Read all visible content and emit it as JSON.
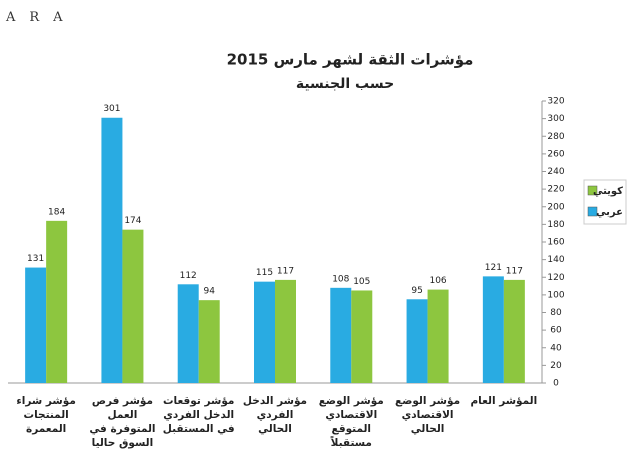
{
  "logo": "ARA",
  "chart_data": {
    "type": "bar",
    "title": "مؤشرات الثقة لشهر مارس 2015",
    "subtitle": "حسب الجنسية",
    "categories": [
      "مؤشر شراء المنتجات المعمرة",
      "مؤشر فرص العمل المتوفرة في السوق حاليا",
      "مؤشر توقعات الدخل الفردي في المستقبل",
      "مؤشر الدخل الفردي الحالي",
      "مؤشر الوضع الاقتصادي المتوقع مستقبلاً",
      "مؤشر الوضع الاقتصادي الحالي",
      "المؤشر العام"
    ],
    "series": [
      {
        "name": "عربي",
        "color": "#29abe2",
        "values": [
          131,
          301,
          112,
          115,
          108,
          95,
          121
        ]
      },
      {
        "name": "كويتي",
        "color": "#8dc63f",
        "values": [
          184,
          174,
          94,
          117,
          105,
          106,
          117
        ]
      }
    ],
    "ylim": [
      0,
      320
    ],
    "yticks": [
      0,
      20,
      40,
      60,
      80,
      100,
      120,
      140,
      160,
      180,
      200,
      220,
      240,
      260,
      280,
      300,
      320
    ],
    "y_axis_side": "right",
    "grid": false,
    "legend": "right"
  }
}
